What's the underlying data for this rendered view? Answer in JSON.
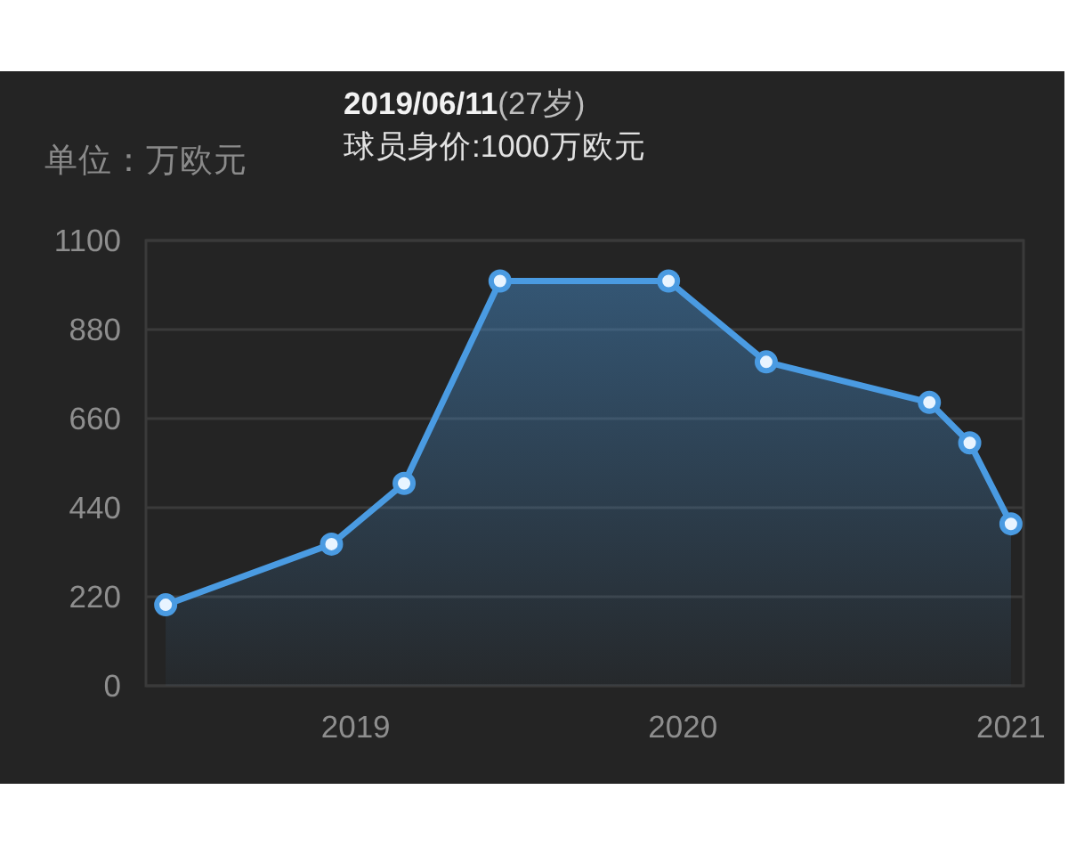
{
  "chart_data": {
    "type": "area",
    "ylabel": "单位：万欧元",
    "x": [
      "2018-06-03",
      "2018-12-05",
      "2019-02-24",
      "2019-06-11",
      "2019-12-16",
      "2020-04-03",
      "2020-10-02",
      "2020-11-16",
      "2021-01-01"
    ],
    "series": [
      {
        "color": "#4a9be2",
        "values": [
          200,
          350,
          500,
          1000,
          1000,
          800,
          700,
          600,
          400
        ]
      }
    ],
    "xlim": [
      "2018-05-12",
      "2021-01-15"
    ],
    "xticks": [
      "2019",
      "2020",
      "2021"
    ],
    "ylim": [
      0,
      1100
    ],
    "yticks": [
      0,
      220,
      440,
      660,
      880,
      1100
    ],
    "grid": "y",
    "marker": "circle",
    "line_style": "solid",
    "annotations": [
      "2019/06/11(27岁)",
      "球员身价:1000万欧元"
    ]
  }
}
